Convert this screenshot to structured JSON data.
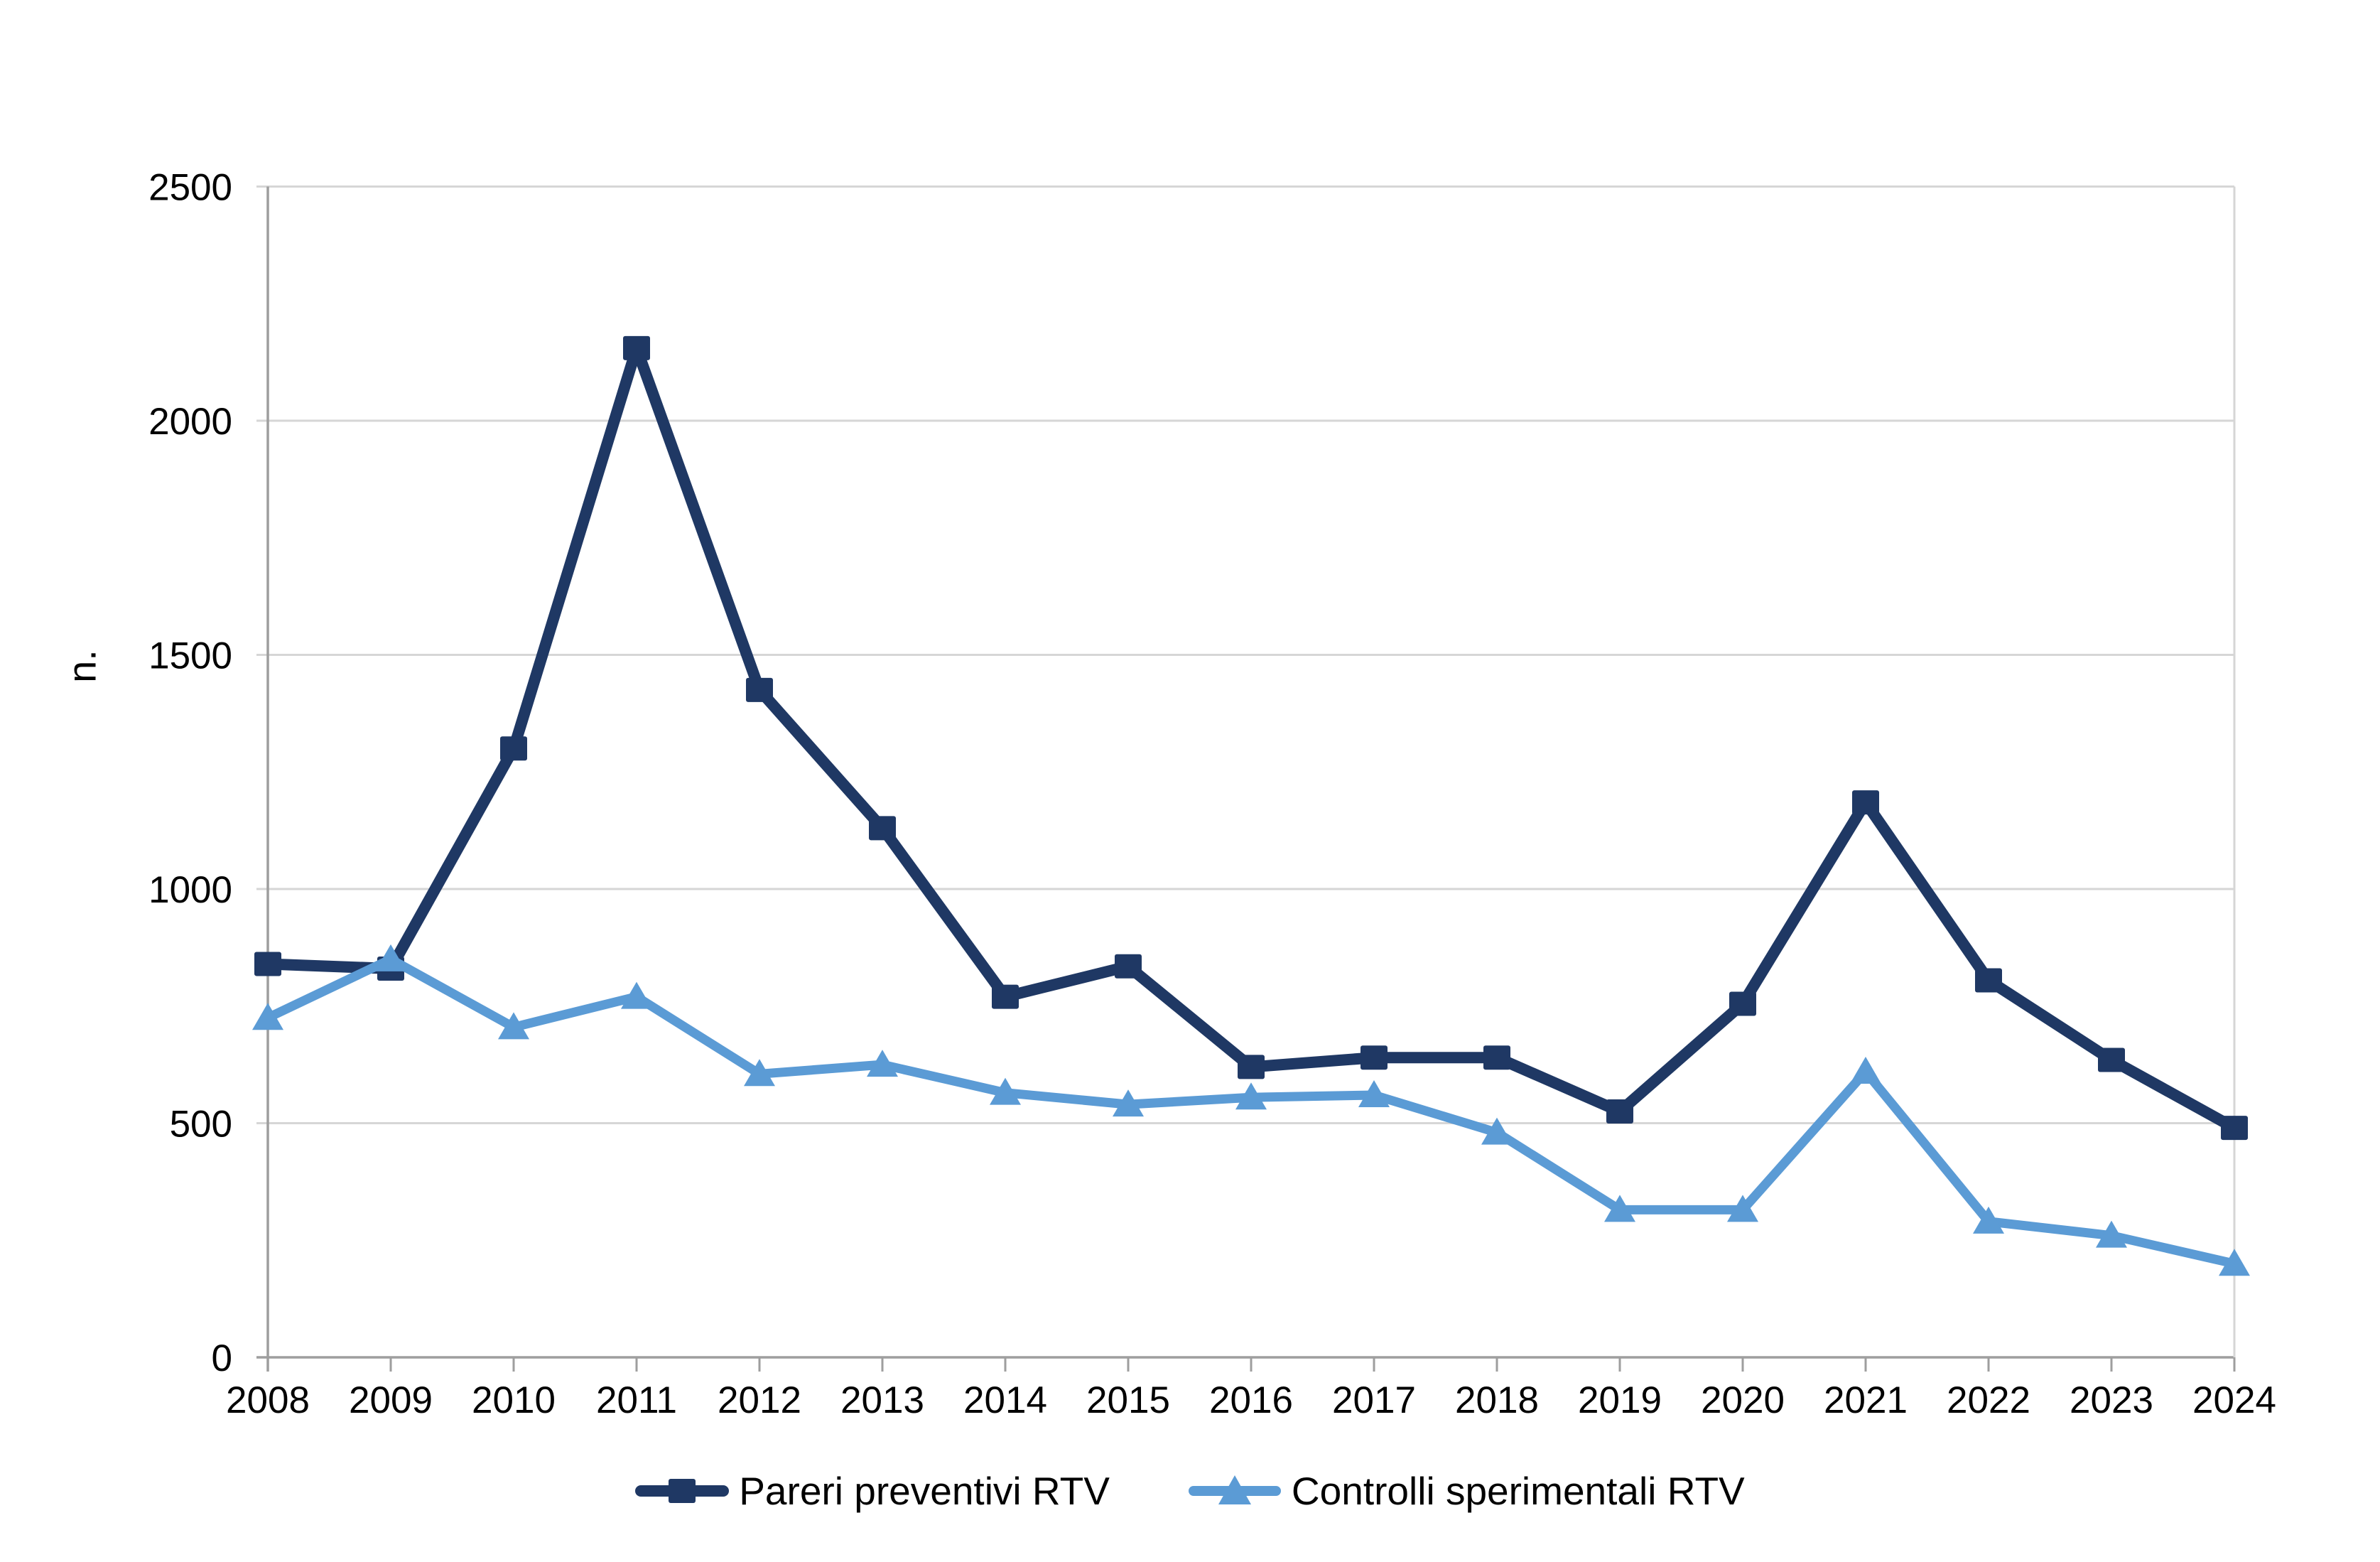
{
  "chart_data": {
    "type": "line",
    "title": "",
    "xlabel": "",
    "ylabel": "n.",
    "categories": [
      "2008",
      "2009",
      "2010",
      "2011",
      "2012",
      "2013",
      "2014",
      "2015",
      "2016",
      "2017",
      "2018",
      "2019",
      "2020",
      "2021",
      "2022",
      "2023",
      "2024"
    ],
    "series": [
      {
        "name": "Pareri preventivi RTV",
        "marker": "square",
        "color": "#1F3864",
        "values": [
          840,
          830,
          1300,
          2155,
          1425,
          1130,
          770,
          835,
          620,
          640,
          640,
          525,
          755,
          1185,
          805,
          635,
          490
        ]
      },
      {
        "name": "Controlli sperimentali RTV",
        "marker": "triangle",
        "color": "#5B9BD5",
        "values": [
          725,
          850,
          705,
          770,
          605,
          625,
          565,
          540,
          555,
          560,
          480,
          315,
          315,
          610,
          290,
          260,
          200
        ]
      }
    ],
    "y_axis": {
      "min": 0,
      "max": 2500,
      "step": 500,
      "tick_labels": [
        "0",
        "500",
        "1000",
        "1500",
        "2000",
        "2500"
      ]
    },
    "grid": true,
    "legend_position": "bottom",
    "colors": {
      "gridline": "#D6D6D6",
      "axis": "#9E9E9E",
      "text": "#000000",
      "background": "#FFFFFF"
    }
  }
}
